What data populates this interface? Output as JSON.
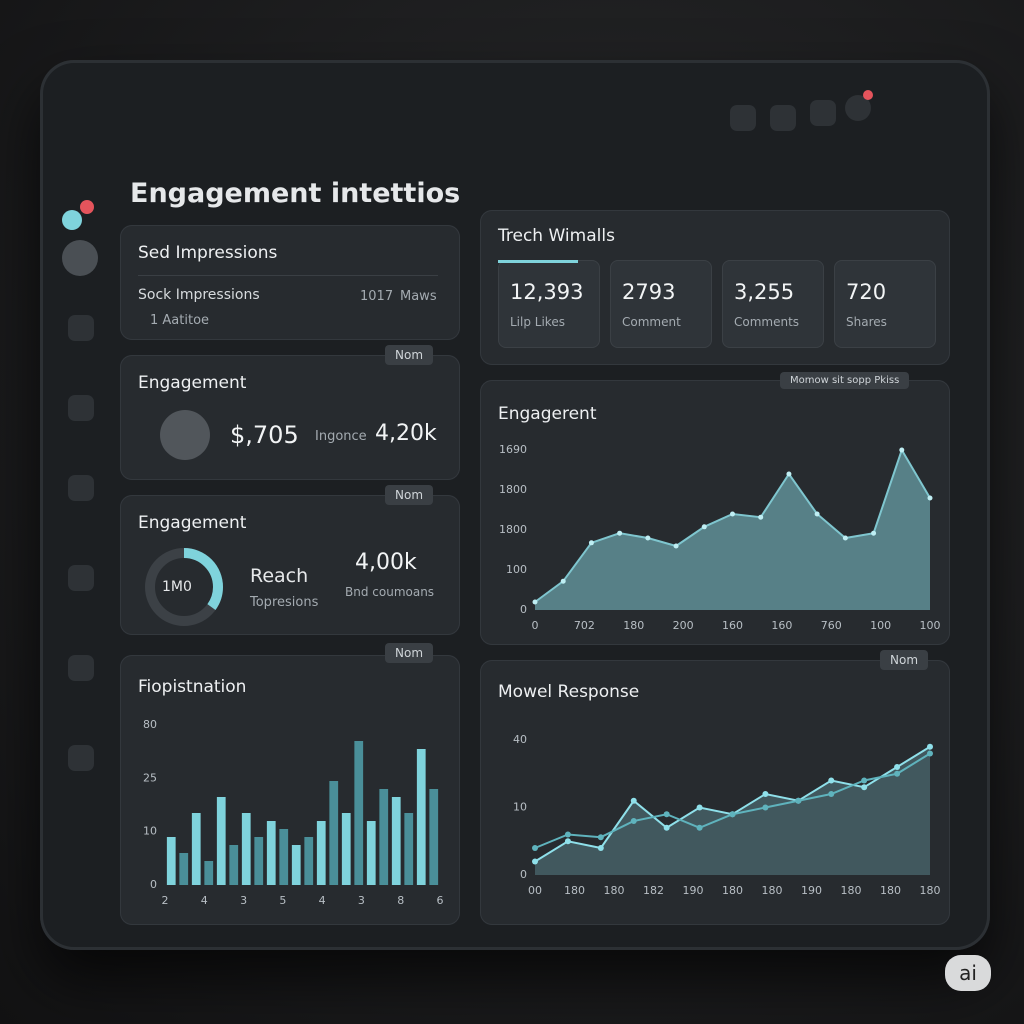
{
  "header": {
    "title": "Engagement intettios"
  },
  "impressions": {
    "title": "Sed Impressions",
    "row_label": "Sock Impressions",
    "row_value": "1017",
    "row_unit": "Maws",
    "footer": "1 Aatitoe"
  },
  "engagement_card": {
    "title": "Engagement",
    "badge": "Nom",
    "value": "$,705",
    "label": "Ingonce",
    "value2": "4,20k"
  },
  "reach_card": {
    "title": "Engagement",
    "badge": "Nom",
    "ring_label": "1M0",
    "ring_fill": 35,
    "label": "Reach",
    "sub": "Topresions",
    "value": "4,00k",
    "sub2": "Bnd coumoans",
    "color": "#7fd3dc"
  },
  "stats": {
    "title": "Trech Wimalls",
    "items": [
      {
        "value": "12,393",
        "label": "Lilp Likes"
      },
      {
        "value": "2793",
        "label": "Comment"
      },
      {
        "value": "3,255",
        "label": "Comments"
      },
      {
        "value": "720",
        "label": "Shares"
      }
    ]
  },
  "engagement_chart": {
    "title": "Engagerent",
    "badge": "Momow sit sopp Pkiss",
    "color": "#7fc6cf",
    "ylim": [
      0,
      100
    ],
    "y_labels": [
      "1690",
      "1800",
      "1800",
      "100",
      "0"
    ],
    "x_labels": [
      "0",
      "702",
      "180",
      "200",
      "160",
      "160",
      "760",
      "100",
      "100"
    ],
    "values": [
      5,
      18,
      42,
      48,
      45,
      40,
      52,
      60,
      58,
      85,
      60,
      45,
      48,
      100,
      70
    ]
  },
  "response_chart": {
    "title": "Mowel Response",
    "badge": "Nom",
    "ylim": [
      0,
      100
    ],
    "y_labels": [
      "40",
      "10",
      "0"
    ],
    "x_labels": [
      "00",
      "180",
      "180",
      "182",
      "190",
      "180",
      "180",
      "190",
      "180",
      "180",
      "180"
    ],
    "series": [
      {
        "color": "#8fe0ea",
        "values": [
          10,
          25,
          20,
          55,
          35,
          50,
          45,
          60,
          55,
          70,
          65,
          80,
          95
        ]
      },
      {
        "color": "#5fb3bd",
        "values": [
          20,
          30,
          28,
          40,
          45,
          35,
          45,
          50,
          55,
          60,
          70,
          75,
          90
        ]
      }
    ]
  },
  "bar_chart": {
    "title": "Fiopistnation",
    "badge": "Nom",
    "colors": [
      "#7fd3dc",
      "#4a8f99"
    ],
    "ylim": [
      0,
      100
    ],
    "y_labels": [
      "80",
      "25",
      "10",
      "0"
    ],
    "x_labels": [
      "2",
      "4",
      "3",
      "5",
      "4",
      "3",
      "8",
      "6"
    ],
    "values": [
      30,
      20,
      45,
      15,
      55,
      25,
      45,
      30,
      40,
      35,
      25,
      30,
      40,
      65,
      45,
      90,
      40,
      60,
      55,
      45,
      85,
      60
    ]
  }
}
